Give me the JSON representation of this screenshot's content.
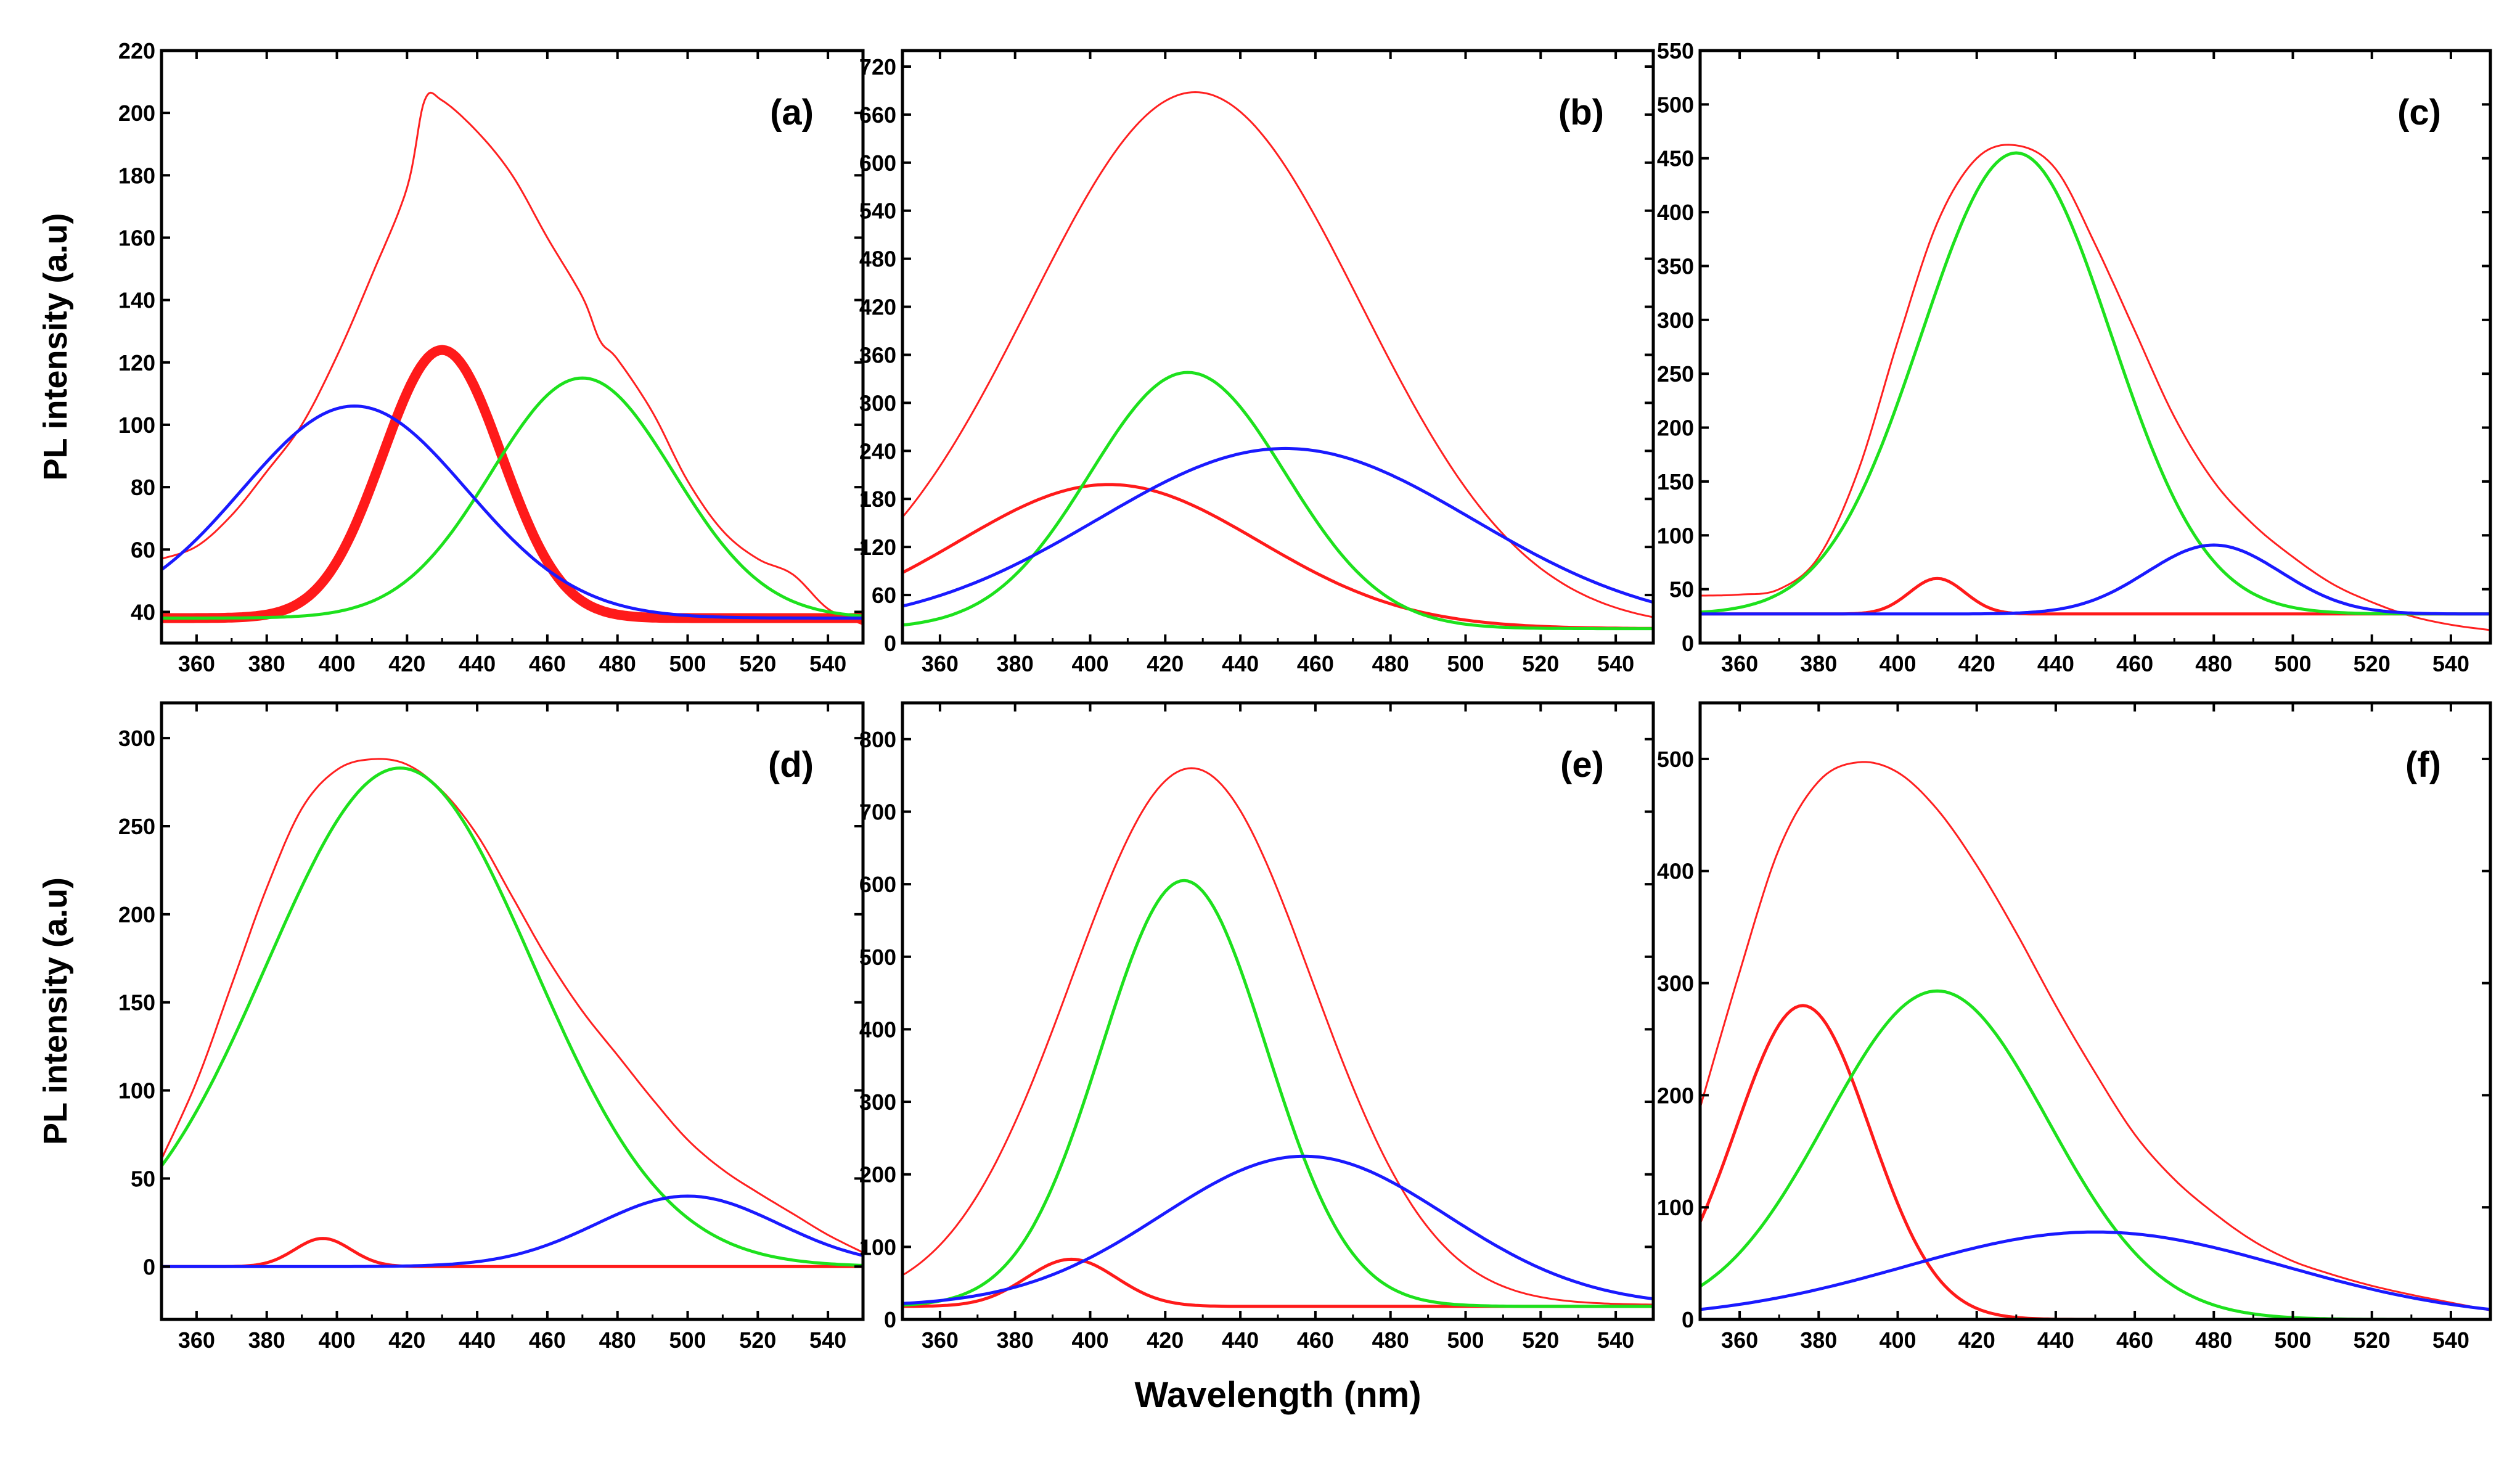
{
  "figure": {
    "ylabel": "PL intensity (a.u)",
    "xlabel": "Wavelength (nm)"
  },
  "colors": {
    "measured": "#000000",
    "fit": "#ff2020",
    "red": "#ff1a1a",
    "green": "#1de11d",
    "blue": "#1a1aff"
  },
  "chart_data": [
    {
      "type": "line",
      "label": "(a)",
      "xlim": [
        350,
        550
      ],
      "ylim": [
        30,
        220
      ],
      "xticks": [
        360,
        380,
        400,
        420,
        440,
        460,
        480,
        500,
        520,
        540
      ],
      "yticks": [
        40,
        60,
        80,
        100,
        120,
        140,
        160,
        180,
        200,
        220
      ],
      "ylabel": "PL intensity (a.u)",
      "xlabel": "",
      "series": [
        {
          "name": "measured",
          "color": "black",
          "x": [
            350,
            360,
            370,
            380,
            390,
            400,
            410,
            420,
            425,
            430,
            440,
            450,
            460,
            470,
            475,
            480,
            490,
            500,
            510,
            520,
            530,
            540,
            550
          ],
          "y": [
            58,
            62,
            72,
            85,
            100,
            122,
            148,
            175,
            205,
            203,
            194,
            180,
            160,
            140,
            125,
            120,
            105,
            82,
            66,
            57,
            53,
            40,
            35
          ]
        },
        {
          "name": "fit",
          "color": "fit",
          "x": [
            350,
            360,
            370,
            380,
            390,
            400,
            410,
            420,
            425,
            430,
            440,
            450,
            460,
            470,
            475,
            480,
            490,
            500,
            510,
            520,
            530,
            540,
            550
          ],
          "y": [
            57,
            61,
            71,
            85,
            100,
            122,
            148,
            176,
            204,
            204,
            194,
            180,
            160,
            141,
            127,
            121,
            104,
            82,
            66,
            57,
            52,
            41,
            36
          ]
        },
        {
          "name": "peak-red",
          "color": "red",
          "center": 430,
          "sigma": 17,
          "amplitude": 86,
          "baseline": 38
        },
        {
          "name": "peak-green",
          "color": "green",
          "center": 470,
          "sigma": 26,
          "amplitude": 77,
          "baseline": 38
        },
        {
          "name": "peak-blue",
          "color": "blue",
          "center": 405,
          "sigma": 32,
          "amplitude": 68,
          "baseline": 38
        }
      ]
    },
    {
      "type": "line",
      "label": "(b)",
      "xlim": [
        350,
        550
      ],
      "ylim": [
        0,
        740
      ],
      "xticks": [
        360,
        380,
        400,
        420,
        440,
        460,
        480,
        500,
        520,
        540
      ],
      "yticks": [
        0,
        60,
        120,
        180,
        240,
        300,
        360,
        420,
        480,
        540,
        600,
        660,
        720
      ],
      "ylabel": "",
      "xlabel": "",
      "series": [
        {
          "name": "measured",
          "color": "black",
          "center": 428,
          "sigma": 44,
          "amplitude": 670,
          "baseline": 18
        },
        {
          "name": "fit",
          "color": "fit",
          "center": 428,
          "sigma": 44,
          "amplitude": 670,
          "baseline": 18
        },
        {
          "name": "peak-red",
          "color": "red",
          "center": 405,
          "sigma": 40,
          "amplitude": 180,
          "baseline": 18
        },
        {
          "name": "peak-green",
          "color": "green",
          "center": 426,
          "sigma": 26,
          "amplitude": 320,
          "baseline": 18
        },
        {
          "name": "peak-blue",
          "color": "blue",
          "center": 452,
          "sigma": 50,
          "amplitude": 225,
          "baseline": 18
        }
      ]
    },
    {
      "type": "line",
      "label": "(c)",
      "xlim": [
        350,
        550
      ],
      "ylim": [
        0,
        550
      ],
      "xticks": [
        360,
        380,
        400,
        420,
        440,
        460,
        480,
        500,
        520,
        540
      ],
      "yticks": [
        0,
        50,
        100,
        150,
        200,
        250,
        300,
        350,
        400,
        450,
        500,
        550
      ],
      "ylabel": "",
      "xlabel": "",
      "series": [
        {
          "name": "measured",
          "color": "black",
          "x": [
            350,
            360,
            370,
            380,
            390,
            400,
            410,
            420,
            430,
            440,
            450,
            460,
            470,
            480,
            490,
            500,
            510,
            520,
            530,
            540,
            550
          ],
          "y": [
            45,
            46,
            50,
            80,
            160,
            280,
            390,
            450,
            463,
            440,
            370,
            290,
            210,
            150,
            110,
            80,
            55,
            38,
            25,
            17,
            12
          ]
        },
        {
          "name": "fit",
          "color": "fit",
          "x": [
            350,
            360,
            370,
            380,
            390,
            400,
            410,
            420,
            430,
            440,
            450,
            460,
            470,
            480,
            490,
            500,
            510,
            520,
            530,
            540,
            550
          ],
          "y": [
            44,
            45,
            50,
            80,
            160,
            280,
            390,
            450,
            462,
            440,
            370,
            290,
            210,
            150,
            110,
            80,
            55,
            38,
            25,
            17,
            12
          ]
        },
        {
          "name": "peak-red",
          "color": "red",
          "center": 410,
          "sigma": 7,
          "amplitude": 33,
          "baseline": 27
        },
        {
          "name": "peak-green",
          "color": "green",
          "center": 430,
          "sigma": 24,
          "amplitude": 428,
          "baseline": 27
        },
        {
          "name": "peak-blue",
          "color": "blue",
          "center": 480,
          "sigma": 17,
          "amplitude": 64,
          "baseline": 27
        }
      ]
    },
    {
      "type": "line",
      "label": "(d)",
      "xlim": [
        350,
        550
      ],
      "ylim": [
        -30,
        320
      ],
      "xticks": [
        360,
        380,
        400,
        420,
        440,
        460,
        480,
        500,
        520,
        540
      ],
      "yticks": [
        0,
        50,
        100,
        150,
        200,
        250,
        300
      ],
      "ylabel": "PL intensity (a.u)",
      "xlabel": "",
      "series": [
        {
          "name": "measured",
          "color": "black",
          "x": [
            350,
            360,
            370,
            380,
            390,
            400,
            410,
            420,
            430,
            440,
            450,
            460,
            470,
            480,
            490,
            500,
            510,
            520,
            530,
            540,
            550
          ],
          "y": [
            62,
            105,
            160,
            215,
            260,
            282,
            288,
            285,
            270,
            245,
            210,
            175,
            145,
            120,
            95,
            72,
            55,
            42,
            30,
            18,
            8
          ]
        },
        {
          "name": "fit",
          "color": "fit",
          "x": [
            350,
            360,
            370,
            380,
            390,
            400,
            410,
            420,
            430,
            440,
            450,
            460,
            470,
            480,
            490,
            500,
            510,
            520,
            530,
            540,
            550
          ],
          "y": [
            61,
            105,
            160,
            215,
            260,
            282,
            288,
            285,
            270,
            245,
            210,
            175,
            145,
            120,
            95,
            72,
            55,
            42,
            30,
            18,
            8
          ]
        },
        {
          "name": "peak-red",
          "color": "red",
          "center": 396,
          "sigma": 8,
          "amplitude": 16,
          "baseline": 0
        },
        {
          "name": "peak-green",
          "color": "green",
          "center": 418,
          "sigma": 38,
          "amplitude": 283,
          "baseline": 0
        },
        {
          "name": "peak-blue",
          "color": "blue",
          "center": 500,
          "sigma": 26,
          "amplitude": 40,
          "baseline": 0
        }
      ]
    },
    {
      "type": "line",
      "label": "(e)",
      "xlim": [
        350,
        550
      ],
      "ylim": [
        0,
        850
      ],
      "xticks": [
        360,
        380,
        400,
        420,
        440,
        460,
        480,
        500,
        520,
        540
      ],
      "yticks": [
        0,
        100,
        200,
        300,
        400,
        500,
        600,
        700,
        800
      ],
      "ylabel": "",
      "xlabel": "Wavelength (nm)",
      "series": [
        {
          "name": "measured",
          "color": "black",
          "center": 427,
          "sigma": 32,
          "amplitude": 740,
          "baseline": 20
        },
        {
          "name": "fit",
          "color": "fit",
          "center": 427,
          "sigma": 32,
          "amplitude": 740,
          "baseline": 20
        },
        {
          "name": "peak-red",
          "color": "red",
          "center": 395,
          "sigma": 12,
          "amplitude": 65,
          "baseline": 18
        },
        {
          "name": "peak-green",
          "color": "green",
          "center": 425,
          "sigma": 22,
          "amplitude": 587,
          "baseline": 18
        },
        {
          "name": "peak-blue",
          "color": "blue",
          "center": 457,
          "sigma": 38,
          "amplitude": 207,
          "baseline": 18
        }
      ]
    },
    {
      "type": "line",
      "label": "(f)",
      "xlim": [
        350,
        550
      ],
      "ylim": [
        0,
        550
      ],
      "xticks": [
        360,
        380,
        400,
        420,
        440,
        460,
        480,
        500,
        520,
        540
      ],
      "yticks": [
        0,
        100,
        200,
        300,
        400,
        500
      ],
      "ylabel": "",
      "xlabel": "",
      "series": [
        {
          "name": "measured",
          "color": "black",
          "x": [
            350,
            360,
            370,
            380,
            390,
            400,
            410,
            420,
            430,
            440,
            450,
            460,
            470,
            480,
            490,
            500,
            510,
            520,
            530,
            540,
            550
          ],
          "y": [
            190,
            310,
            420,
            480,
            498,
            488,
            455,
            405,
            345,
            280,
            220,
            165,
            125,
            95,
            70,
            52,
            40,
            30,
            22,
            15,
            8
          ]
        },
        {
          "name": "fit",
          "color": "fit",
          "x": [
            350,
            360,
            370,
            380,
            390,
            400,
            410,
            420,
            430,
            440,
            450,
            460,
            470,
            480,
            490,
            500,
            510,
            520,
            530,
            540,
            550
          ],
          "y": [
            189,
            310,
            420,
            480,
            497,
            488,
            455,
            405,
            345,
            280,
            220,
            165,
            125,
            95,
            70,
            52,
            40,
            30,
            22,
            15,
            8
          ]
        },
        {
          "name": "peak-red",
          "color": "red",
          "center": 376,
          "sigma": 17,
          "amplitude": 280,
          "baseline": 0
        },
        {
          "name": "peak-green",
          "color": "green",
          "center": 410,
          "sigma": 28,
          "amplitude": 293,
          "baseline": 0
        },
        {
          "name": "peak-blue",
          "color": "blue",
          "center": 450,
          "sigma": 48,
          "amplitude": 78,
          "baseline": 0
        }
      ]
    }
  ]
}
